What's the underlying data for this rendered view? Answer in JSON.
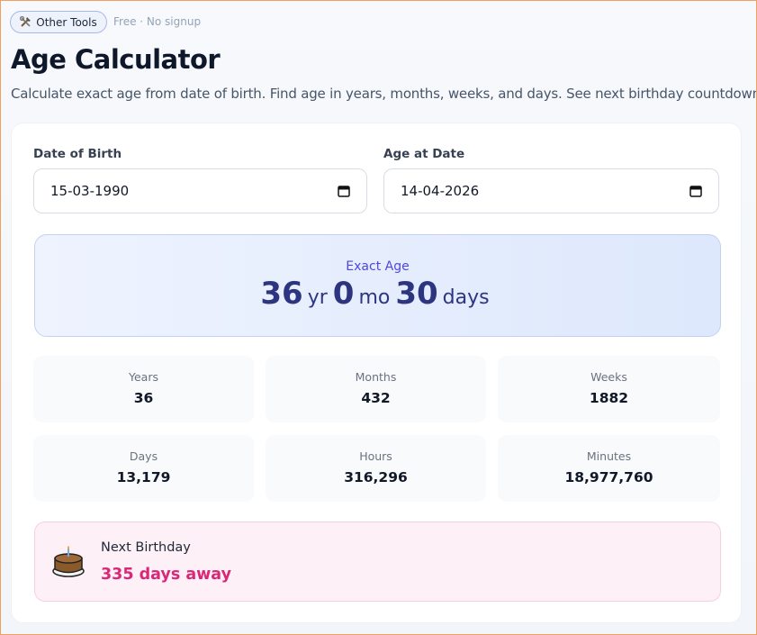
{
  "header": {
    "badge": "Other Tools",
    "note": "Free · No signup",
    "title": "Age Calculator",
    "description": "Calculate exact age from date of birth. Find age in years, months, weeks, and days. See next birthday countdown."
  },
  "form": {
    "fields": [
      {
        "label": "Date of Birth",
        "value": "15-03-1990"
      },
      {
        "label": "Age at Date",
        "value": "14-04-2026"
      }
    ]
  },
  "result": {
    "label": "Exact Age",
    "parts": [
      {
        "value": "36",
        "unit": "yr"
      },
      {
        "value": "0",
        "unit": "mo"
      },
      {
        "value": "30",
        "unit": "days"
      }
    ]
  },
  "stats": [
    {
      "label": "Years",
      "value": "36"
    },
    {
      "label": "Months",
      "value": "432"
    },
    {
      "label": "Weeks",
      "value": "1882"
    },
    {
      "label": "Days",
      "value": "13,179"
    },
    {
      "label": "Hours",
      "value": "316,296"
    },
    {
      "label": "Minutes",
      "value": "18,977,760"
    }
  ],
  "next_birthday": {
    "label": "Next Birthday",
    "value": "335 days away"
  }
}
